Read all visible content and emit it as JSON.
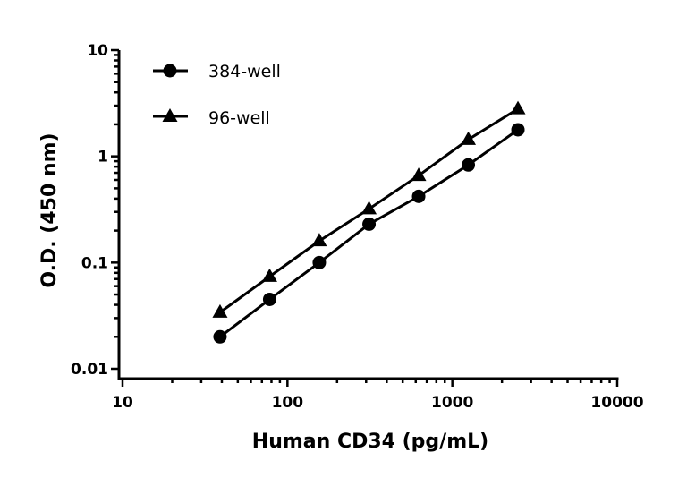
{
  "chart_data": {
    "type": "line",
    "title": "",
    "xlabel": "Human CD34 (pg/mL)",
    "ylabel": "O.D. (450 nm)",
    "xscale": "log",
    "yscale": "log",
    "xlim": [
      10,
      10000
    ],
    "ylim": [
      0.01,
      10
    ],
    "xticks": [
      "10",
      "100",
      "1000",
      "10000"
    ],
    "yticks": [
      "0.01",
      "0.1",
      "1",
      "10"
    ],
    "grid": false,
    "legend_position": "top-left",
    "x": [
      39,
      78,
      156,
      312.5,
      625,
      1250,
      2500
    ],
    "series": [
      {
        "name": "384-well",
        "marker": "circle",
        "color": "#000000",
        "values": [
          0.02,
          0.045,
          0.1,
          0.23,
          0.42,
          0.83,
          1.78
        ]
      },
      {
        "name": "96-well",
        "marker": "triangle",
        "color": "#000000",
        "values": [
          0.034,
          0.074,
          0.16,
          0.32,
          0.66,
          1.44,
          2.8
        ]
      }
    ]
  }
}
